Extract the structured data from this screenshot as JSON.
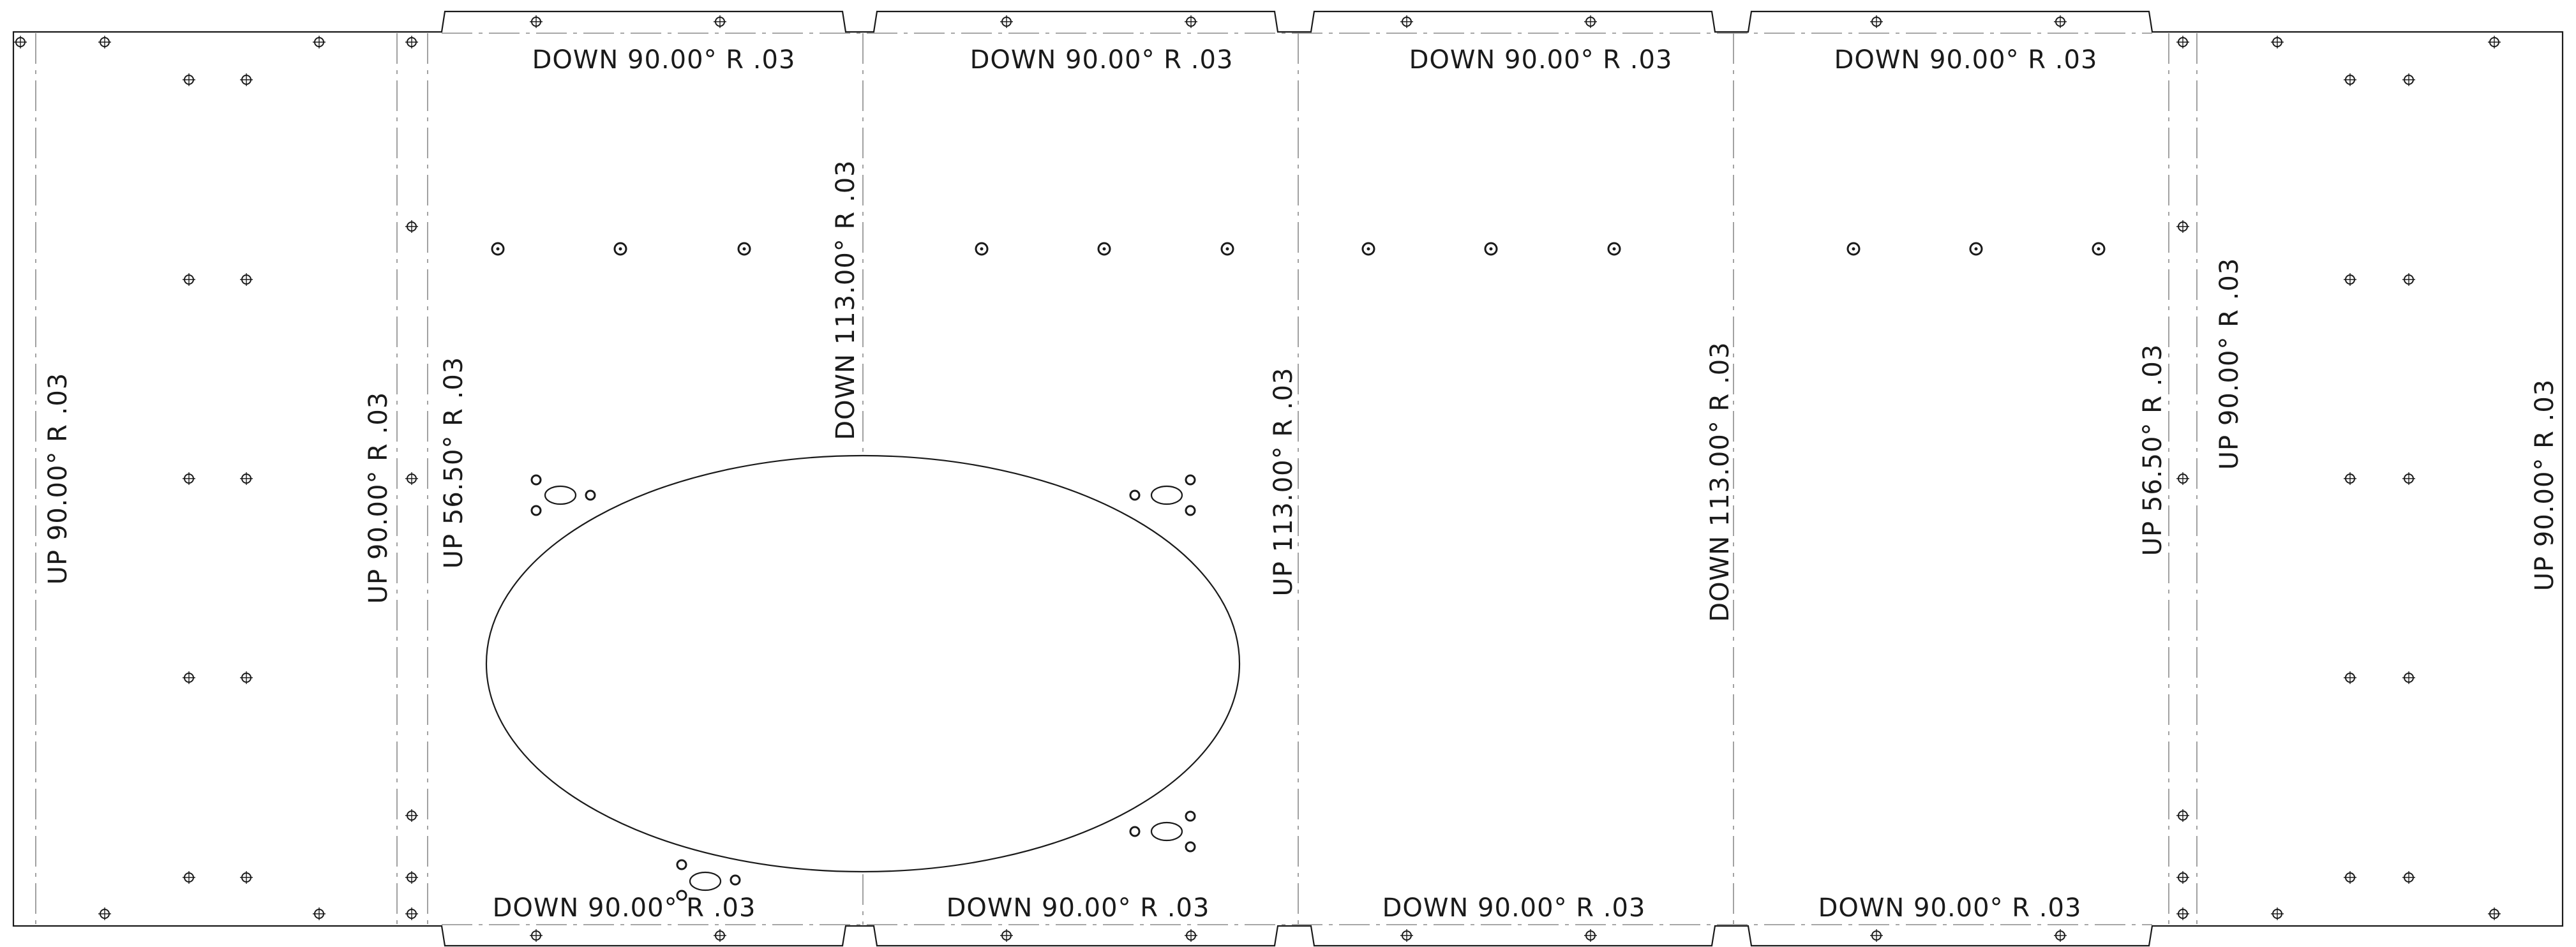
{
  "bend_notes": {
    "left_flange_1": "UP  90.00°  R .03",
    "left_flange_2": "UP  90.00°  R .03",
    "left_bevel": "UP  56.50°  R .03",
    "center_left": "DOWN  113.00°  R .03",
    "center_mid": "UP  113.00°  R .03",
    "center_right": "DOWN  113.00°  R .03",
    "right_bevel": "UP  56.50°  R .03",
    "right_flange_1": "UP  90.00°  R .03",
    "right_flange_2": "UP  90.00°  R .03",
    "top_tab_1": "DOWN  90.00°  R .03",
    "top_tab_2": "DOWN  90.00°  R .03",
    "top_tab_3": "DOWN  90.00°  R .03",
    "top_tab_4": "DOWN  90.00°  R .03",
    "bottom_tab_1": "DOWN  90.00°  R .03",
    "bottom_tab_2": "DOWN  90.00°  R .03",
    "bottom_tab_3": "DOWN  90.00°  R .03",
    "bottom_tab_4": "DOWN  90.00°  R .03"
  }
}
